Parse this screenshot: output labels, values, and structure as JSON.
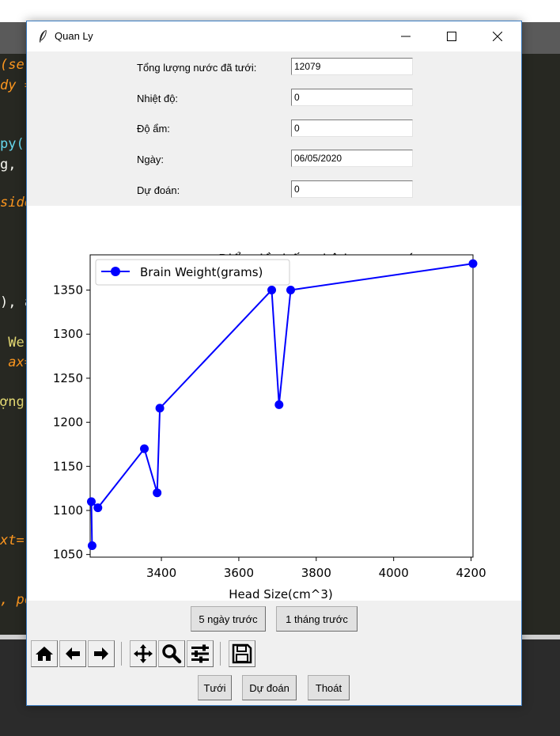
{
  "window": {
    "title": "Quan Ly"
  },
  "form": {
    "fields": [
      {
        "label": "Tổng lượng nước đã tưới:",
        "value": "12079"
      },
      {
        "label": "Nhiệt độ:",
        "value": "0"
      },
      {
        "label": "Độ ẩm:",
        "value": "0"
      },
      {
        "label": "Ngày:",
        "value": "06/05/2020"
      },
      {
        "label": "Dự đoán:",
        "value": "0"
      }
    ]
  },
  "chart_data": {
    "type": "line",
    "title": "Biểu đồ thống kê lượng nước",
    "xlabel": "Head Size(cm^3)",
    "ylabel": "",
    "xlim": [
      3216,
      4205
    ],
    "ylim": [
      1047,
      1390
    ],
    "xticks": [
      3400,
      3600,
      3800,
      4000,
      4200
    ],
    "yticks": [
      1050,
      1100,
      1150,
      1200,
      1250,
      1300,
      1350
    ],
    "grid": false,
    "legend_position": "top-left",
    "series": [
      {
        "name": "Brain Weight(grams)",
        "color": "#0000ff",
        "marker": "circle",
        "x": [
          3221,
          3219,
          3236,
          3356,
          3389,
          3396,
          3685,
          3704,
          3734,
          4205
        ],
        "y": [
          1060,
          1110,
          1103,
          1170,
          1120,
          1216,
          1350,
          1220,
          1350,
          1380
        ]
      }
    ]
  },
  "range_buttons": {
    "five_days": "5 ngày trước",
    "one_month": "1 tháng trước"
  },
  "toolbar_icons": [
    "home-icon",
    "back-arrow-icon",
    "forward-arrow-icon",
    "pan-icon",
    "zoom-icon",
    "configure-icon",
    "save-icon"
  ],
  "actions": {
    "water": "Tưới",
    "predict": "Dự đoán",
    "exit": "Thoát"
  },
  "background_code": [
    {
      "text": "(sel",
      "color": "#fd971f"
    },
    {
      "text": "dy =",
      "color": "#fd971f"
    },
    {
      "text": "py()",
      "color": "#66d9ef"
    },
    {
      "text": "g,",
      "color": "#f8f8f2"
    },
    {
      "text": "side",
      "color": "#fd971f"
    },
    {
      "text": "), a",
      "color": "#f8f8f2"
    },
    {
      "text": " We:",
      "color": "#e6db74"
    },
    {
      "text": " ax=",
      "color": "#fd971f"
    },
    {
      "text": "ợng",
      "color": "#e6db74"
    },
    {
      "text": "xt=",
      "color": "#fd971f"
    },
    {
      "text": ", po",
      "color": "#fd971f"
    }
  ]
}
